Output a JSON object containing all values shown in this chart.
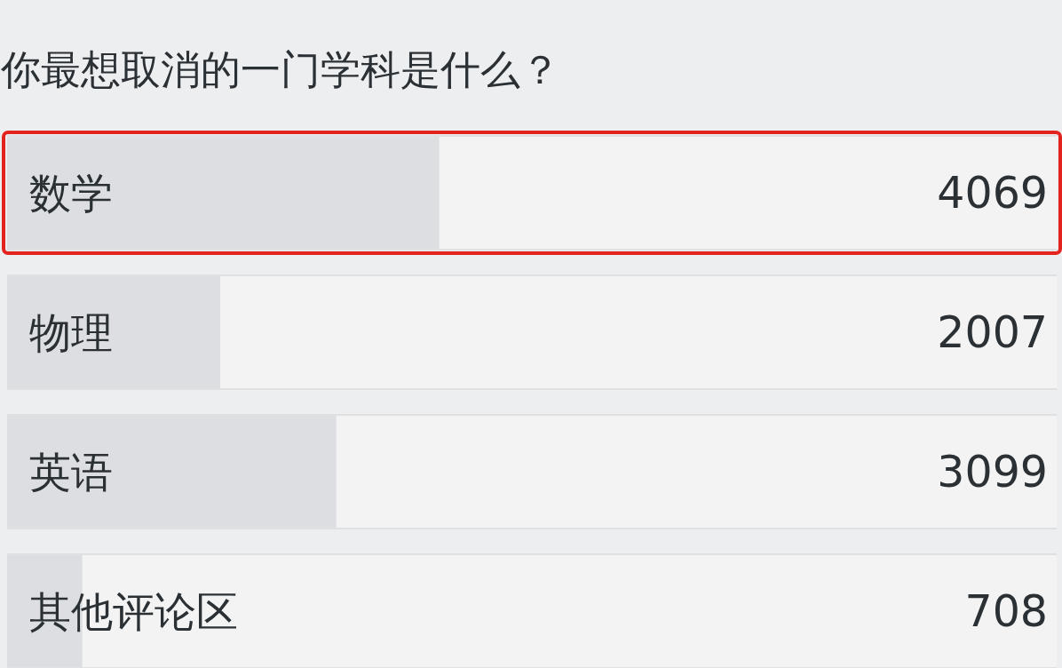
{
  "chart_data": {
    "type": "bar",
    "orientation": "horizontal",
    "title": "你最想取消的一门学科是什么？",
    "categories": [
      "数学",
      "物理",
      "英语",
      "其他评论区"
    ],
    "values": [
      4069,
      2007,
      3099,
      708
    ],
    "color": "#dcdee1",
    "xlim": [
      0,
      9883
    ],
    "data_labels": true,
    "tick_labels": "y"
  }
}
